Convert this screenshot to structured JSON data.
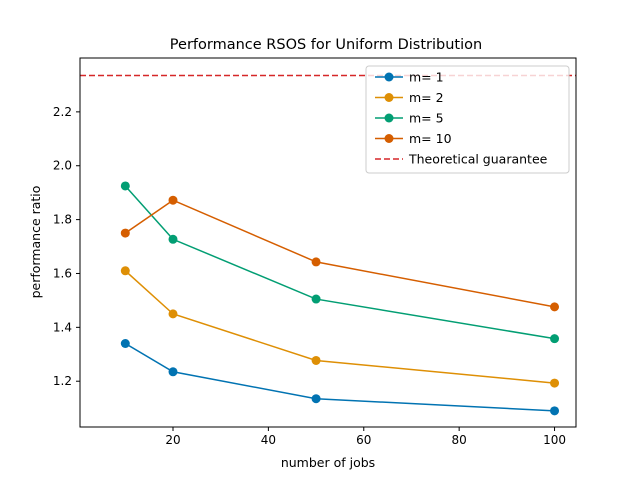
{
  "chart_data": {
    "type": "line",
    "title": "Performance RSOS for Uniform Distribution",
    "xlabel": "number of jobs",
    "ylabel": "performance ratio",
    "xlim": [
      0.5,
      104.5
    ],
    "ylim": [
      1.03,
      2.4
    ],
    "xticks": [
      20,
      40,
      60,
      80,
      100
    ],
    "yticks": [
      1.2,
      1.4,
      1.6,
      1.8,
      2.0,
      2.2
    ],
    "x": [
      10,
      20,
      50,
      100
    ],
    "series": [
      {
        "name": "m= 1",
        "color": "#0173b2",
        "values": [
          1.34,
          1.235,
          1.135,
          1.09
        ]
      },
      {
        "name": "m= 2",
        "color": "#de8f05",
        "values": [
          1.61,
          1.45,
          1.277,
          1.193
        ]
      },
      {
        "name": "m= 5",
        "color": "#029e73",
        "values": [
          1.925,
          1.727,
          1.505,
          1.358
        ]
      },
      {
        "name": "m= 10",
        "color": "#d55e00",
        "values": [
          1.75,
          1.872,
          1.643,
          1.476
        ]
      }
    ],
    "reference_line": {
      "name": "Theoretical guarantee",
      "color": "#d62728",
      "style": "dashed",
      "y": 2.335
    },
    "grid": false,
    "legend_position": "top-right"
  }
}
